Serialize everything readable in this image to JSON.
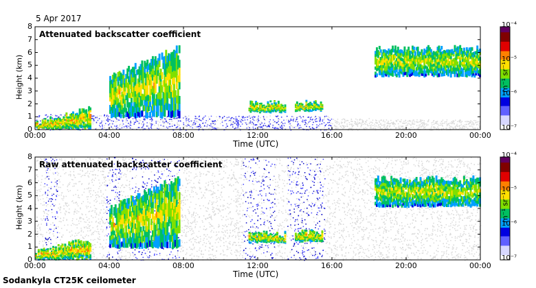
{
  "date": "5 Apr 2017",
  "footer": "Sodankyla CT25K ceilometer",
  "colormap": {
    "stops": [
      "#ffffff",
      "#d8d8ff",
      "#6060ff",
      "#0000e0",
      "#00a0ff",
      "#00c060",
      "#80e000",
      "#ffe000",
      "#ff8000",
      "#e00000",
      "#800000",
      "#600060"
    ]
  },
  "chart_data": [
    {
      "type": "heatmap",
      "title": "Attenuated backscatter coefficient",
      "xlabel": "Time (UTC)",
      "ylabel": "Height (km)",
      "x_ticks": [
        "00:00",
        "04:00",
        "08:00",
        "12:00",
        "16:00",
        "20:00",
        "00:00"
      ],
      "y_ticks": [
        "0",
        "1",
        "2",
        "3",
        "4",
        "5",
        "6",
        "7",
        "8"
      ],
      "ylim": [
        0,
        8
      ],
      "colorbar": {
        "label": "m⁻¹ sr⁻¹",
        "ticks": [
          "10⁻⁴",
          "10⁻⁵",
          "10⁻⁶",
          "10⁻⁷"
        ],
        "scale": "log",
        "range": [
          1e-07,
          0.0001
        ]
      },
      "features": [
        {
          "t0": 0.0,
          "t1": 3.0,
          "h0": 0.1,
          "h1": 0.5,
          "h1_end": 1.6,
          "level": 5.8
        },
        {
          "t0": 4.0,
          "t1": 7.8,
          "h0": 1.0,
          "h1": 4.0,
          "h1_end": 6.5,
          "level": 5.2
        },
        {
          "t0": 11.5,
          "t1": 13.5,
          "h0": 1.4,
          "h1": 2.0,
          "h1_end": 2.0,
          "level": 5.5
        },
        {
          "t0": 14.0,
          "t1": 15.5,
          "h0": 1.5,
          "h1": 2.1,
          "h1_end": 2.1,
          "level": 5.6
        },
        {
          "t0": 18.3,
          "t1": 24.0,
          "h0": 4.2,
          "h1": 6.3,
          "h1_end": 6.3,
          "level": 5.0
        }
      ]
    },
    {
      "type": "heatmap",
      "title": "Raw attenuated backscatter coefficient",
      "xlabel": "Time (UTC)",
      "ylabel": "Height (km)",
      "x_ticks": [
        "00:00",
        "04:00",
        "08:00",
        "12:00",
        "16:00",
        "20:00",
        "00:00"
      ],
      "y_ticks": [
        "0",
        "1",
        "2",
        "3",
        "4",
        "5",
        "6",
        "7",
        "8"
      ],
      "ylim": [
        0,
        8
      ],
      "colorbar": {
        "label": "m⁻¹ sr⁻¹",
        "ticks": [
          "10⁻⁴",
          "10⁻⁵",
          "10⁻⁶",
          "10⁻⁷"
        ],
        "scale": "log",
        "range": [
          1e-07,
          0.0001
        ]
      },
      "features": [
        {
          "t0": 0.0,
          "t1": 3.0,
          "h0": 0.1,
          "h1": 0.5,
          "h1_end": 1.6,
          "level": 5.8
        },
        {
          "t0": 4.0,
          "t1": 7.8,
          "h0": 1.0,
          "h1": 4.0,
          "h1_end": 6.5,
          "level": 5.2
        },
        {
          "t0": 11.5,
          "t1": 13.5,
          "h0": 1.4,
          "h1": 2.0,
          "h1_end": 2.0,
          "level": 5.5
        },
        {
          "t0": 14.0,
          "t1": 15.5,
          "h0": 1.5,
          "h1": 2.1,
          "h1_end": 2.1,
          "level": 5.6
        },
        {
          "t0": 18.3,
          "t1": 24.0,
          "h0": 4.2,
          "h1": 6.3,
          "h1_end": 6.3,
          "level": 5.0
        }
      ]
    }
  ]
}
